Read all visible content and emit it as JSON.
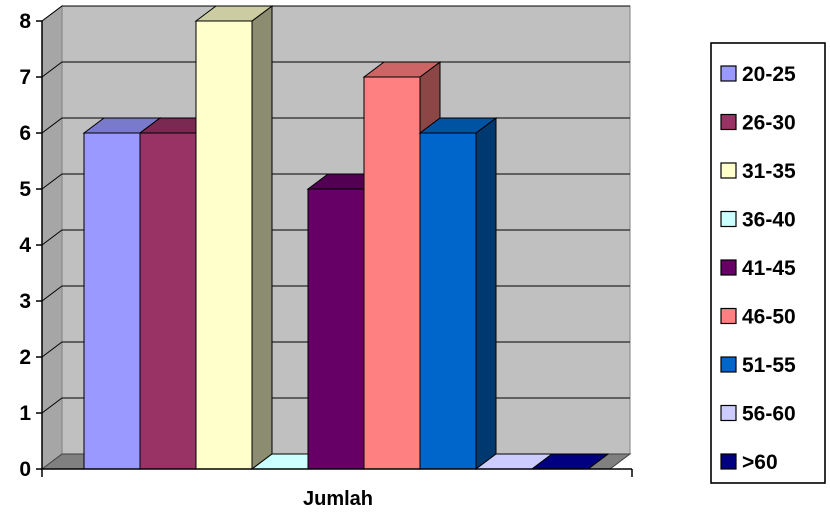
{
  "chart_data": {
    "type": "bar",
    "title": "",
    "xlabel": "Jumlah",
    "ylabel": "",
    "ylim": [
      0,
      8
    ],
    "yticks": [
      0,
      1,
      2,
      3,
      4,
      5,
      6,
      7,
      8
    ],
    "grid": true,
    "three_d": true,
    "plot_background": "#c0c0c0",
    "legend_position": "right",
    "categories": [
      "Jumlah"
    ],
    "series": [
      {
        "name": "20-25",
        "values": [
          6
        ],
        "color": "#9999ff"
      },
      {
        "name": "26-30",
        "values": [
          6
        ],
        "color": "#993366"
      },
      {
        "name": "31-35",
        "values": [
          8
        ],
        "color": "#ffffcc"
      },
      {
        "name": "36-40",
        "values": [
          0
        ],
        "color": "#ccffff"
      },
      {
        "name": "41-45",
        "values": [
          5
        ],
        "color": "#660066"
      },
      {
        "name": "46-50",
        "values": [
          7
        ],
        "color": "#ff8080"
      },
      {
        "name": "51-55",
        "values": [
          6
        ],
        "color": "#0066cc"
      },
      {
        "name": "56-60",
        "values": [
          0
        ],
        "color": "#ccccff"
      },
      {
        "name": ">60",
        "values": [
          0
        ],
        "color": "#000080"
      }
    ]
  }
}
